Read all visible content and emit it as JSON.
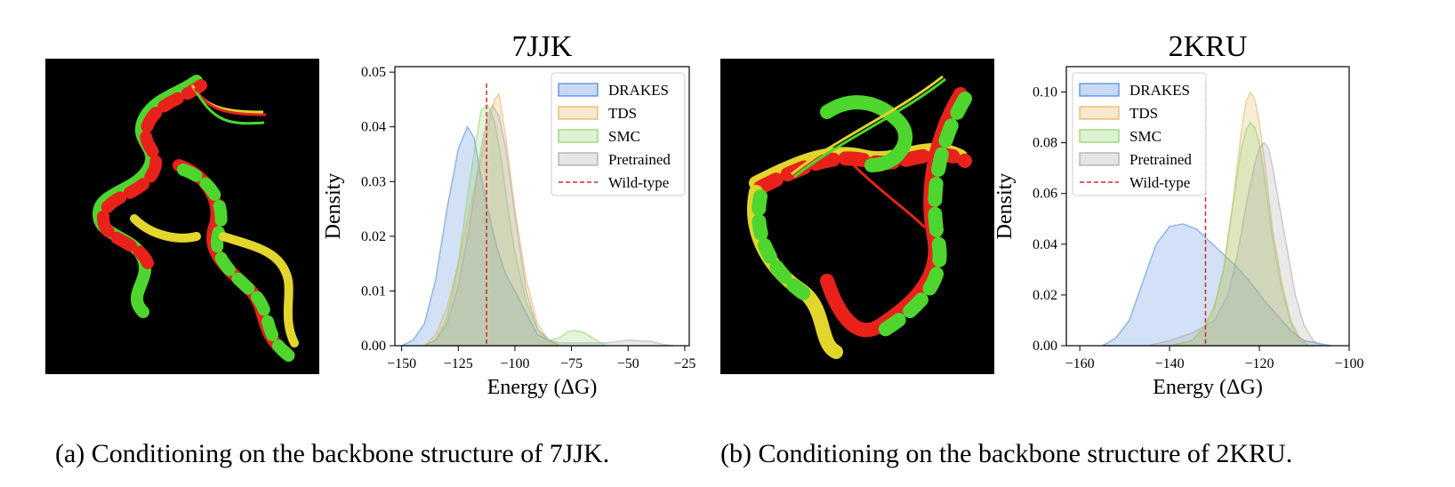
{
  "panels": [
    {
      "id": "a",
      "caption": "(a) Conditioning on the backbone structure of 7JJK.",
      "image": {
        "description_icon": "protein-ribbon-structure",
        "colors": [
          "#e8221b",
          "#4ed62e",
          "#e2d52c"
        ]
      },
      "chart_data": {
        "type": "area",
        "title": "7JJK",
        "xlabel": "Energy (ΔG)",
        "ylabel": "Density",
        "xlim": [
          -153,
          -23
        ],
        "ylim": [
          0,
          0.051
        ],
        "xticks": [
          -150,
          -125,
          -100,
          -75,
          -50,
          -25
        ],
        "yticks": [
          0.0,
          0.01,
          0.02,
          0.03,
          0.04,
          0.05
        ],
        "ytick_labels": [
          "0.00",
          "0.01",
          "0.02",
          "0.03",
          "0.04",
          "0.05"
        ],
        "xtick_labels": [
          "−150",
          "−125",
          "−100",
          "−75",
          "−50",
          "−25"
        ],
        "legend_position": "top-right",
        "reference_line": {
          "name": "Wild-type",
          "x": -112.5,
          "color": "#d62728"
        },
        "series": [
          {
            "name": "DRAKES",
            "color": "#4a86d8",
            "x": [
              -150,
              -145,
              -140,
              -135,
              -130,
              -125,
              -121,
              -118,
              -115,
              -112,
              -108,
              -104,
              -100,
              -95,
              -90,
              -85,
              -80,
              -70,
              -60
            ],
            "y": [
              0,
              0.001,
              0.004,
              0.012,
              0.025,
              0.036,
              0.04,
              0.038,
              0.031,
              0.025,
              0.018,
              0.013,
              0.01,
              0.006,
              0.002,
              0.001,
              0,
              0,
              0
            ]
          },
          {
            "name": "TDS",
            "color": "#e6b35f",
            "x": [
              -140,
              -135,
              -130,
              -125,
              -120,
              -115,
              -112,
              -109,
              -107,
              -104,
              -100,
              -95,
              -90,
              -85,
              -80
            ],
            "y": [
              0,
              0.002,
              0.007,
              0.015,
              0.025,
              0.034,
              0.04,
              0.045,
              0.046,
              0.038,
              0.025,
              0.012,
              0.004,
              0.001,
              0
            ]
          },
          {
            "name": "SMC",
            "color": "#8ed36a",
            "x": [
              -140,
              -135,
              -130,
              -125,
              -120,
              -115,
              -112,
              -109,
              -106,
              -103,
              -100,
              -95,
              -90,
              -85,
              -80,
              -77,
              -74,
              -70,
              -66,
              -62,
              -60
            ],
            "y": [
              0,
              0.001,
              0.005,
              0.015,
              0.03,
              0.043,
              0.044,
              0.041,
              0.034,
              0.025,
              0.017,
              0.008,
              0.003,
              0.001,
              0.0015,
              0.0025,
              0.0028,
              0.0025,
              0.0015,
              0.0005,
              0
            ]
          },
          {
            "name": "Pretrained",
            "color": "#a9a9a9",
            "x": [
              -140,
              -135,
              -130,
              -125,
              -120,
              -115,
              -112,
              -110,
              -107,
              -104,
              -100,
              -95,
              -90,
              -85,
              -80,
              -70,
              -60,
              -50,
              -40,
              -35,
              -30
            ],
            "y": [
              0,
              0.001,
              0.004,
              0.011,
              0.022,
              0.036,
              0.042,
              0.044,
              0.042,
              0.036,
              0.024,
              0.01,
              0.003,
              0.001,
              0.0005,
              0.0005,
              0.0005,
              0.001,
              0.0008,
              0.0003,
              0
            ]
          }
        ]
      }
    },
    {
      "id": "b",
      "caption": "(b) Conditioning on the backbone structure of 2KRU.",
      "image": {
        "description_icon": "protein-ribbon-structure",
        "colors": [
          "#e8221b",
          "#4ed62e",
          "#e2d52c"
        ]
      },
      "chart_data": {
        "type": "area",
        "title": "2KRU",
        "xlabel": "Energy (ΔG)",
        "ylabel": "Density",
        "xlim": [
          -163,
          -100
        ],
        "ylim": [
          0,
          0.11
        ],
        "xticks": [
          -160,
          -140,
          -120,
          -100
        ],
        "yticks": [
          0.0,
          0.02,
          0.04,
          0.06,
          0.08,
          0.1
        ],
        "ytick_labels": [
          "0.00",
          "0.02",
          "0.04",
          "0.06",
          "0.08",
          "0.10"
        ],
        "xtick_labels": [
          "−160",
          "−140",
          "−120",
          "−100"
        ],
        "legend_position": "top-left",
        "reference_line": {
          "name": "Wild-type",
          "x": -132,
          "color": "#d62728"
        },
        "series": [
          {
            "name": "DRAKES",
            "color": "#4a86d8",
            "x": [
              -155,
              -152,
              -149,
              -146,
              -143,
              -140,
              -137,
              -134,
              -131,
              -128,
              -125,
              -122,
              -119,
              -116,
              -113,
              -110,
              -107,
              -104
            ],
            "y": [
              0,
              0.003,
              0.01,
              0.025,
              0.04,
              0.047,
              0.048,
              0.046,
              0.041,
              0.036,
              0.031,
              0.025,
              0.018,
              0.012,
              0.006,
              0.002,
              0.001,
              0
            ]
          },
          {
            "name": "TDS",
            "color": "#e6b35f",
            "x": [
              -140,
              -135,
              -132,
              -130,
              -128,
              -126,
              -124,
              -123,
              -122,
              -121,
              -120,
              -119,
              -118,
              -117,
              -115,
              -113,
              -111,
              -109
            ],
            "y": [
              0,
              0.002,
              0.008,
              0.016,
              0.03,
              0.055,
              0.085,
              0.096,
              0.1,
              0.097,
              0.088,
              0.075,
              0.06,
              0.045,
              0.025,
              0.01,
              0.003,
              0
            ]
          },
          {
            "name": "SMC",
            "color": "#8ed36a",
            "x": [
              -140,
              -135,
              -132,
              -130,
              -128,
              -126,
              -124,
              -123,
              -122,
              -121,
              -120,
              -119,
              -118,
              -117,
              -115,
              -113,
              -111,
              -109
            ],
            "y": [
              0,
              0.002,
              0.008,
              0.015,
              0.03,
              0.055,
              0.078,
              0.085,
              0.088,
              0.086,
              0.08,
              0.068,
              0.055,
              0.042,
              0.022,
              0.009,
              0.002,
              0
            ]
          },
          {
            "name": "Pretrained",
            "color": "#a9a9a9",
            "x": [
              -145,
              -140,
              -135,
              -130,
              -127,
              -125,
              -123,
              -121,
              -120,
              -119,
              -118,
              -117,
              -116,
              -114,
              -112,
              -110,
              -108,
              -106
            ],
            "y": [
              0,
              0.002,
              0.005,
              0.01,
              0.02,
              0.035,
              0.055,
              0.072,
              0.078,
              0.08,
              0.078,
              0.07,
              0.06,
              0.04,
              0.02,
              0.008,
              0.002,
              0
            ]
          }
        ]
      }
    }
  ]
}
